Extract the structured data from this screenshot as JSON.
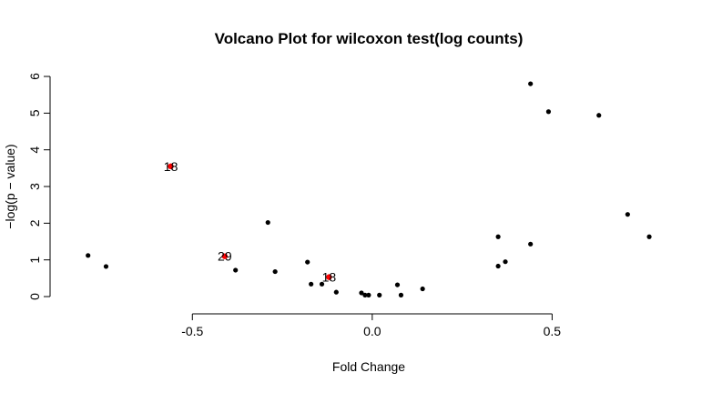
{
  "chart_data": {
    "type": "scatter",
    "title": "Volcano Plot for wilcoxon test(log counts)",
    "xlabel": "Fold Change",
    "ylabel": "−log(p − value)",
    "xlim": [
      -0.85,
      0.78
    ],
    "ylim": [
      0,
      6.1
    ],
    "xticks": [
      -0.5,
      0.0,
      0.5
    ],
    "xtick_labels": [
      "-0.5",
      "0.0",
      "0.5"
    ],
    "yticks": [
      0,
      1,
      2,
      3,
      4,
      5,
      6
    ],
    "ytick_labels": [
      "0",
      "1",
      "2",
      "3",
      "4",
      "5",
      "6"
    ],
    "grid": false,
    "legend": "none",
    "colors": {
      "normal": "#000000",
      "highlight": "#ff0000"
    },
    "points": [
      {
        "x": -0.79,
        "y": 1.12
      },
      {
        "x": -0.74,
        "y": 0.82
      },
      {
        "x": -0.38,
        "y": 0.72
      },
      {
        "x": -0.29,
        "y": 2.02
      },
      {
        "x": -0.27,
        "y": 0.68
      },
      {
        "x": -0.18,
        "y": 0.94
      },
      {
        "x": -0.17,
        "y": 0.34
      },
      {
        "x": -0.14,
        "y": 0.34
      },
      {
        "x": -0.1,
        "y": 0.12
      },
      {
        "x": -0.03,
        "y": 0.1
      },
      {
        "x": -0.02,
        "y": 0.04
      },
      {
        "x": -0.01,
        "y": 0.04
      },
      {
        "x": 0.02,
        "y": 0.04
      },
      {
        "x": 0.07,
        "y": 0.32
      },
      {
        "x": 0.08,
        "y": 0.04
      },
      {
        "x": 0.14,
        "y": 0.21
      },
      {
        "x": 0.35,
        "y": 1.63
      },
      {
        "x": 0.35,
        "y": 0.83
      },
      {
        "x": 0.37,
        "y": 0.95
      },
      {
        "x": 0.44,
        "y": 5.8
      },
      {
        "x": 0.44,
        "y": 1.43
      },
      {
        "x": 0.49,
        "y": 5.04
      },
      {
        "x": 0.63,
        "y": 4.94
      },
      {
        "x": 0.71,
        "y": 2.24
      },
      {
        "x": 0.77,
        "y": 1.63
      }
    ],
    "highlighted_points": [
      {
        "x": -0.56,
        "y": 3.55,
        "label": "18"
      },
      {
        "x": -0.41,
        "y": 1.1,
        "label": "29"
      },
      {
        "x": -0.12,
        "y": 0.53,
        "label": "18"
      }
    ]
  }
}
